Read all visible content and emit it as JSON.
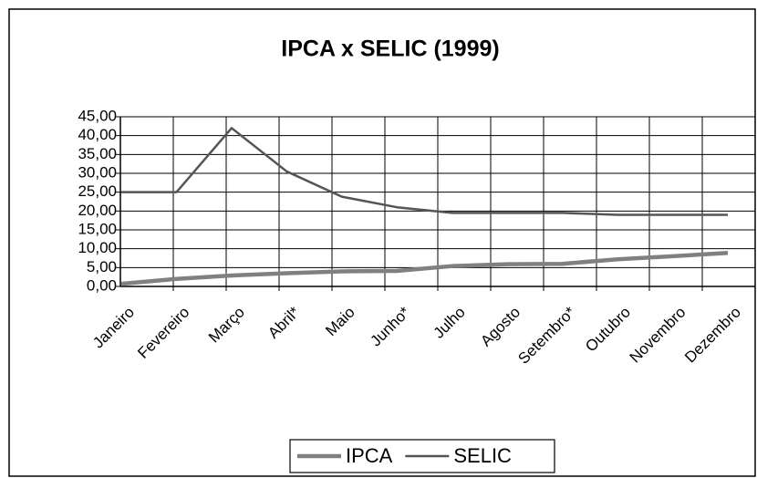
{
  "chart_data": {
    "type": "line",
    "title": "IPCA x SELIC (1999)",
    "categories": [
      "Janeiro",
      "Fevereiro",
      "Março",
      "Abril*",
      "Maio",
      "Junho*",
      "Julho",
      "Agosto",
      "Setembro*",
      "Outubro",
      "Novembro",
      "Dezembro"
    ],
    "series": [
      {
        "name": "IPCA",
        "color": "#808080",
        "values": [
          0.7,
          2.0,
          2.9,
          3.5,
          4.0,
          4.1,
          5.4,
          5.9,
          6.0,
          7.2,
          8.0,
          8.9
        ]
      },
      {
        "name": "SELIC",
        "color": "#555555",
        "values": [
          25.0,
          25.0,
          42.0,
          30.5,
          23.8,
          21.0,
          19.5,
          19.5,
          19.5,
          19.0,
          19.0,
          19.0
        ]
      }
    ],
    "ylim": [
      0,
      45
    ],
    "yticks": [
      {
        "value": 0,
        "label": "0,00"
      },
      {
        "value": 5,
        "label": "5,00"
      },
      {
        "value": 10,
        "label": "10,00"
      },
      {
        "value": 15,
        "label": "15,00"
      },
      {
        "value": 20,
        "label": "20,00"
      },
      {
        "value": 25,
        "label": "25,00"
      },
      {
        "value": 30,
        "label": "30,00"
      },
      {
        "value": 35,
        "label": "35,00"
      },
      {
        "value": 40,
        "label": "40,00"
      },
      {
        "value": 45,
        "label": "45,00"
      }
    ],
    "grid": true,
    "legend": "bottom"
  }
}
